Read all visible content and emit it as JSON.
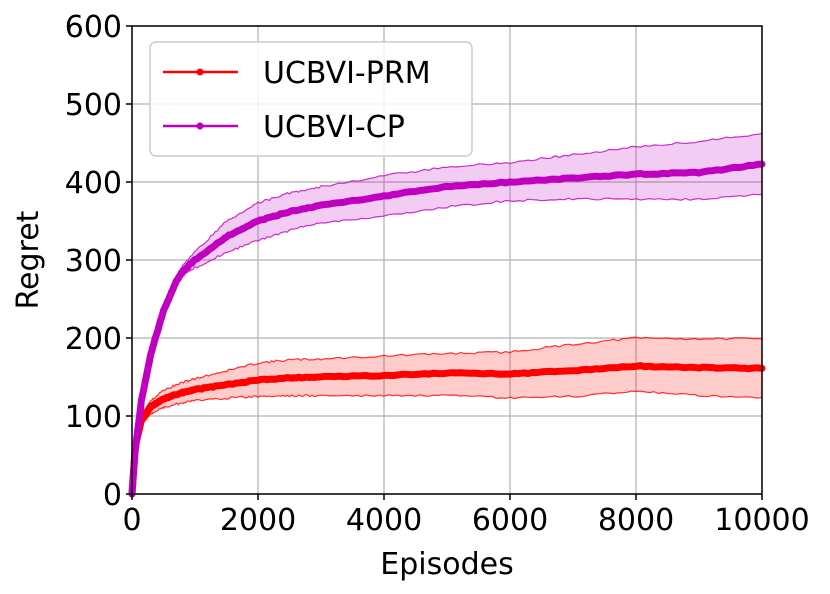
{
  "chart_data": {
    "type": "line",
    "xlabel": "Episodes",
    "ylabel": "Regret",
    "xlim": [
      0,
      10000
    ],
    "ylim": [
      0,
      600
    ],
    "xticks": [
      0,
      2000,
      4000,
      6000,
      8000,
      10000
    ],
    "yticks": [
      0,
      100,
      200,
      300,
      400,
      500,
      600
    ],
    "grid": true,
    "legend_position": "top-left",
    "series": [
      {
        "name": "UCBVI-PRM",
        "color": "#ff0000",
        "x": [
          0,
          50,
          150,
          300,
          500,
          800,
          1000,
          1500,
          2000,
          2500,
          3000,
          4000,
          5000,
          6000,
          7000,
          8000,
          9000,
          10000
        ],
        "values": [
          0,
          60,
          95,
          112,
          122,
          130,
          134,
          140,
          146,
          149,
          150,
          152,
          155,
          154,
          158,
          164,
          162,
          161
        ],
        "lower": [
          0,
          55,
          88,
          103,
          111,
          117,
          120,
          123,
          125,
          126,
          126,
          126,
          126,
          123,
          125,
          132,
          126,
          124
        ],
        "upper": [
          0,
          66,
          102,
          120,
          133,
          143,
          148,
          158,
          168,
          172,
          173,
          177,
          180,
          182,
          192,
          200,
          199,
          199
        ]
      },
      {
        "name": "UCBVI-CP",
        "color": "#bf00bf",
        "x": [
          0,
          50,
          150,
          300,
          500,
          700,
          800,
          1000,
          1500,
          2000,
          2500,
          3000,
          4000,
          5000,
          6000,
          7000,
          8000,
          9000,
          10000
        ],
        "values": [
          0,
          55,
          120,
          180,
          235,
          272,
          285,
          300,
          330,
          350,
          362,
          370,
          382,
          394,
          400,
          405,
          410,
          412,
          423
        ],
        "lower": [
          0,
          53,
          118,
          178,
          232,
          268,
          280,
          290,
          310,
          325,
          338,
          348,
          356,
          368,
          376,
          378,
          378,
          378,
          384
        ],
        "upper": [
          0,
          57,
          123,
          183,
          240,
          276,
          292,
          310,
          350,
          373,
          386,
          394,
          408,
          419,
          425,
          435,
          445,
          452,
          462
        ]
      }
    ]
  }
}
